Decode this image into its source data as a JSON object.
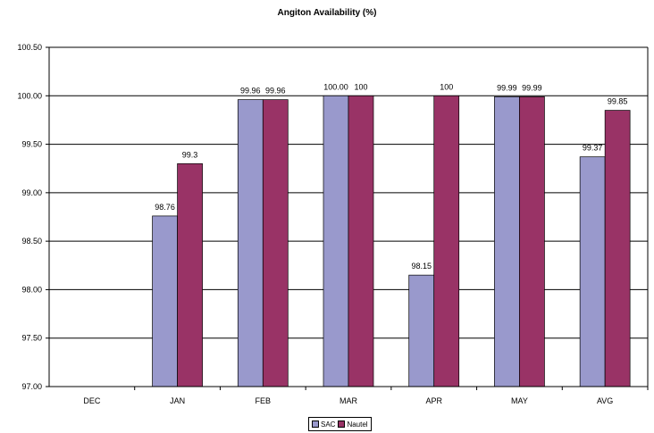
{
  "chart_data": {
    "type": "bar",
    "title": "Angiton Availability (%)",
    "xlabel": "",
    "ylabel": "",
    "categories": [
      "DEC",
      "JAN",
      "FEB",
      "MAR",
      "APR",
      "MAY",
      "AVG"
    ],
    "ylim": [
      97.0,
      100.5
    ],
    "yticks": [
      "97.00",
      "97.50",
      "98.00",
      "98.50",
      "99.00",
      "99.50",
      "100.00",
      "100.50"
    ],
    "grid": true,
    "legend_position": "bottom",
    "series": [
      {
        "name": "SAC",
        "color": "#9999cc",
        "values": [
          null,
          98.76,
          99.96,
          100.0,
          98.15,
          99.99,
          99.37
        ],
        "labels": [
          "",
          "98.76",
          "99.96",
          "100.00",
          "98.15",
          "99.99",
          "99.37"
        ]
      },
      {
        "name": "Nautel",
        "color": "#993366",
        "values": [
          null,
          99.3,
          99.96,
          100.0,
          100.0,
          99.99,
          99.85
        ],
        "labels": [
          "",
          "99.3",
          "99.96",
          "100",
          "100",
          "99.99",
          "99.85"
        ]
      }
    ]
  }
}
